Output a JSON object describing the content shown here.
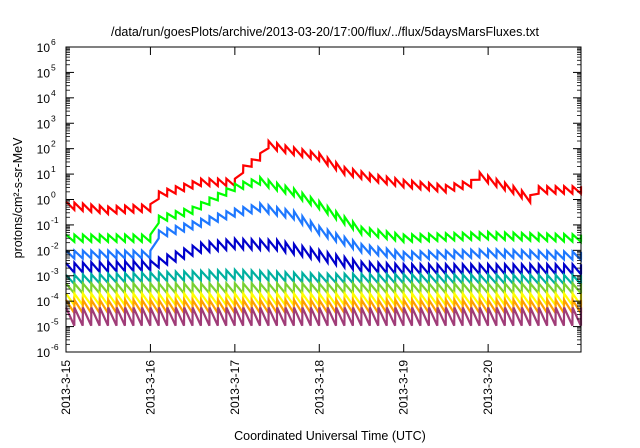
{
  "chart_data": {
    "type": "line",
    "title": "/data/run/goesPlots/archive/2013-03-20/17:00/flux/../flux/5daysMarsFluxes.txt",
    "xlabel": "Coordinated Universal Time (UTC)",
    "ylabel": "protons/cm²-s-sr-MeV",
    "y_scale": "log",
    "ylim": [
      -6,
      6
    ],
    "xlim": [
      0,
      6.1
    ],
    "x_ticks": [
      {
        "value": 0,
        "label": "2013-3-15"
      },
      {
        "value": 1,
        "label": "2013-3-16"
      },
      {
        "value": 2,
        "label": "2013-3-17"
      },
      {
        "value": 3,
        "label": "2013-3-18"
      },
      {
        "value": 4,
        "label": "2013-3-19"
      },
      {
        "value": 5,
        "label": "2013-3-20"
      }
    ],
    "y_ticks": [
      {
        "value": -6,
        "label": "10",
        "exp": "-6"
      },
      {
        "value": -5,
        "label": "10",
        "exp": "-5"
      },
      {
        "value": -4,
        "label": "10",
        "exp": "-4"
      },
      {
        "value": -3,
        "label": "10",
        "exp": "-3"
      },
      {
        "value": -2,
        "label": "10",
        "exp": "-2"
      },
      {
        "value": -1,
        "label": "10",
        "exp": "-1"
      },
      {
        "value": 0,
        "label": "10",
        "exp": "0"
      },
      {
        "value": 1,
        "label": "10",
        "exp": "1"
      },
      {
        "value": 2,
        "label": "10",
        "exp": "2"
      },
      {
        "value": 3,
        "label": "10",
        "exp": "3"
      },
      {
        "value": 4,
        "label": "10",
        "exp": "4"
      },
      {
        "value": 5,
        "label": "10",
        "exp": "5"
      },
      {
        "value": 6,
        "label": "10",
        "exp": "6"
      }
    ],
    "grid": false,
    "legend": "none",
    "series": [
      {
        "color": "#ff0000",
        "sawtooth_amplitude_decades": 0.22,
        "x": [
          0,
          0.5,
          1.0,
          1.1,
          1.6,
          2.0,
          2.05,
          2.3,
          2.38,
          2.6,
          3.0,
          3.3,
          3.6,
          4.0,
          4.5,
          4.8,
          4.9,
          5.3,
          5.5,
          5.6,
          6.1
        ],
        "log10": [
          -0.3,
          -0.5,
          -0.4,
          0.1,
          0.6,
          0.6,
          1.0,
          1.6,
          2.1,
          1.9,
          1.6,
          1.05,
          0.8,
          0.55,
          0.35,
          0.55,
          0.85,
          0.3,
          -0.05,
          0.3,
          0.3
        ]
      },
      {
        "color": "#00ff00",
        "sawtooth_amplitude_decades": 0.22,
        "x": [
          0,
          0.9,
          1.0,
          1.05,
          1.5,
          2.0,
          2.3,
          2.7,
          3.0,
          3.3,
          3.5,
          4.0,
          5.0,
          6.1
        ],
        "log10": [
          -1.6,
          -1.6,
          -1.6,
          -0.9,
          -0.5,
          0.4,
          0.65,
          0.2,
          -0.3,
          -0.9,
          -1.3,
          -1.6,
          -1.5,
          -1.6
        ]
      },
      {
        "color": "#1e78ff",
        "sawtooth_amplitude_decades": 0.24,
        "x": [
          0,
          1.0,
          1.05,
          1.5,
          2.0,
          2.3,
          2.7,
          3.0,
          3.5,
          4.0,
          5.0,
          6.1
        ],
        "log10": [
          -2.25,
          -2.25,
          -1.5,
          -1.1,
          -0.6,
          -0.4,
          -0.7,
          -1.3,
          -2.0,
          -2.3,
          -2.2,
          -2.3
        ]
      },
      {
        "color": "#0000cc",
        "sawtooth_amplitude_decades": 0.3,
        "x": [
          0,
          1.0,
          1.6,
          2.0,
          2.5,
          3.0,
          3.5,
          4.0,
          6.1
        ],
        "log10": [
          -2.8,
          -2.7,
          -2.0,
          -1.85,
          -1.9,
          -2.3,
          -2.75,
          -2.85,
          -2.85
        ]
      },
      {
        "color": "#00b0a0",
        "sawtooth_amplitude_decades": 0.28,
        "x": [
          0,
          2.0,
          3.0,
          6.1
        ],
        "log10": [
          -3.25,
          -3.05,
          -3.2,
          -3.25
        ]
      },
      {
        "color": "#7ad030",
        "sawtooth_amplitude_decades": 0.3,
        "x": [
          0,
          6.1
        ],
        "log10": [
          -3.6,
          -3.6
        ]
      },
      {
        "color": "#ffff00",
        "sawtooth_amplitude_decades": 0.35,
        "x": [
          0,
          6.1
        ],
        "log10": [
          -4.05,
          -4.05
        ]
      },
      {
        "color": "#ffa000",
        "sawtooth_amplitude_decades": 0.4,
        "x": [
          0,
          6.1
        ],
        "log10": [
          -4.35,
          -4.35
        ]
      },
      {
        "color": "#a03c78",
        "sawtooth_amplitude_decades": 0.55,
        "x": [
          0,
          6.1
        ],
        "log10": [
          -4.8,
          -4.8
        ]
      }
    ]
  }
}
